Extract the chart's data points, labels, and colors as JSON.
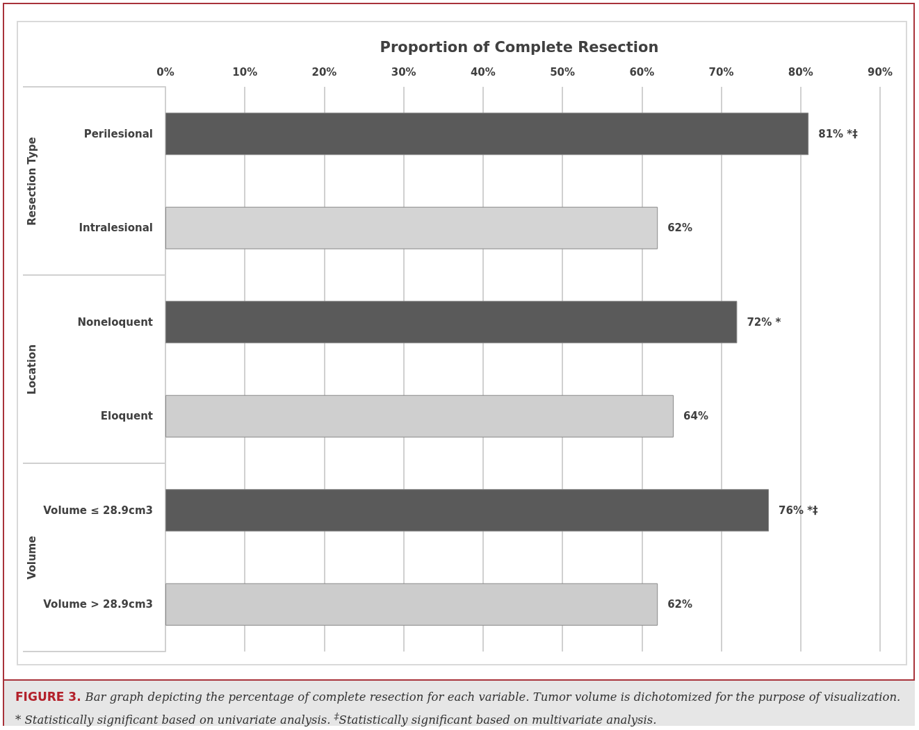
{
  "chart_data": {
    "type": "bar",
    "orientation": "horizontal",
    "title": "Proportion of Complete Resection",
    "categories": [
      "Perilesional",
      "Intralesional",
      "Noneloquent",
      "Eloquent",
      "Volume ≤ 28.9cm3",
      "Volume > 28.9cm3"
    ],
    "values": [
      81,
      62,
      72,
      64,
      76,
      62
    ],
    "colors": [
      "#5a5a5a",
      "#d4d4d4",
      "#5a5a5a",
      "#cfcfcf",
      "#5a5a5a",
      "#cccccc"
    ],
    "value_labels": [
      "81% *‡",
      "62%",
      "72% *",
      "64%",
      "76% *‡",
      "62%"
    ],
    "xlim": [
      0,
      90
    ],
    "xticks": [
      {
        "value": 0,
        "label": "0%"
      },
      {
        "value": 10,
        "label": "10%"
      },
      {
        "value": 20,
        "label": "20%"
      },
      {
        "value": 30,
        "label": "30%"
      },
      {
        "value": 40,
        "label": "40%"
      },
      {
        "value": 50,
        "label": "50%"
      },
      {
        "value": 60,
        "label": "60%"
      },
      {
        "value": 70,
        "label": "70%"
      },
      {
        "value": 80,
        "label": "80%"
      },
      {
        "value": 90,
        "label": "90%"
      }
    ],
    "grid": "x",
    "annotations": [
      "Resection Type",
      "Location",
      "Volume",
      "FIGURE 3.",
      "Bar graph depicting the percentage of complete resection for each variable. Tumor volume is dichotomized for the purpose of visualization. * Statistically significant based on univariate analysis. $^{‡}$Statistically significant based on multivariate analysis."
    ]
  }
}
